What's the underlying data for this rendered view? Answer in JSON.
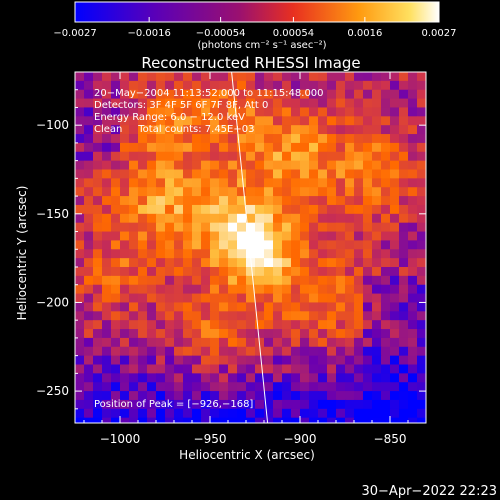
{
  "chart_data": {
    "type": "heatmap",
    "title": "Reconstructed RHESSI Image",
    "xlabel": "Heliocentric X (arcsec)",
    "ylabel": "Heliocentric Y (arcsec)",
    "xlim": [
      -1025,
      -830
    ],
    "ylim": [
      -268,
      -70
    ],
    "x_ticks": [
      -1000,
      -950,
      -900,
      -850
    ],
    "x_tick_labels": [
      "−1000",
      "−950",
      "−900",
      "−850"
    ],
    "y_ticks": [
      -100,
      -150,
      -200,
      -250
    ],
    "y_tick_labels": [
      "−100",
      "−150",
      "−200",
      "−250"
    ],
    "colorbar": {
      "ticks": [
        -0.0027,
        -0.0016,
        -0.00054,
        0.00054,
        0.0016,
        0.0027
      ],
      "tick_labels": [
        "−0.0027",
        "−0.0016",
        "−0.00054",
        "0.00054",
        "0.0016",
        "0.0027"
      ],
      "label": "(photons cm⁻² s⁻¹ asec⁻²)",
      "range": [
        -0.0027,
        0.0027
      ],
      "colormap": [
        "#0000ff",
        "#6a00b0",
        "#cc3050",
        "#ff6a00",
        "#ffc040",
        "#ffffff"
      ]
    },
    "annotations": [
      "20−May−2004 11:13:52.000 to 11:15:48.000",
      "Detectors: 3F 4F 5F 6F 7F 8F, Att 0",
      "Energy Range: 6.0 − 12.0 keV",
      "Clean     Total counts: 7.45E+03"
    ],
    "peak_label": "Position of Peak = [−926,−168]",
    "peak": {
      "x": -926,
      "y": -168
    },
    "limb_line": [
      {
        "x": -938,
        "y": -70
      },
      {
        "x": -918,
        "y": -268
      }
    ]
  },
  "timestamp": "30−Apr−2022 22:23"
}
